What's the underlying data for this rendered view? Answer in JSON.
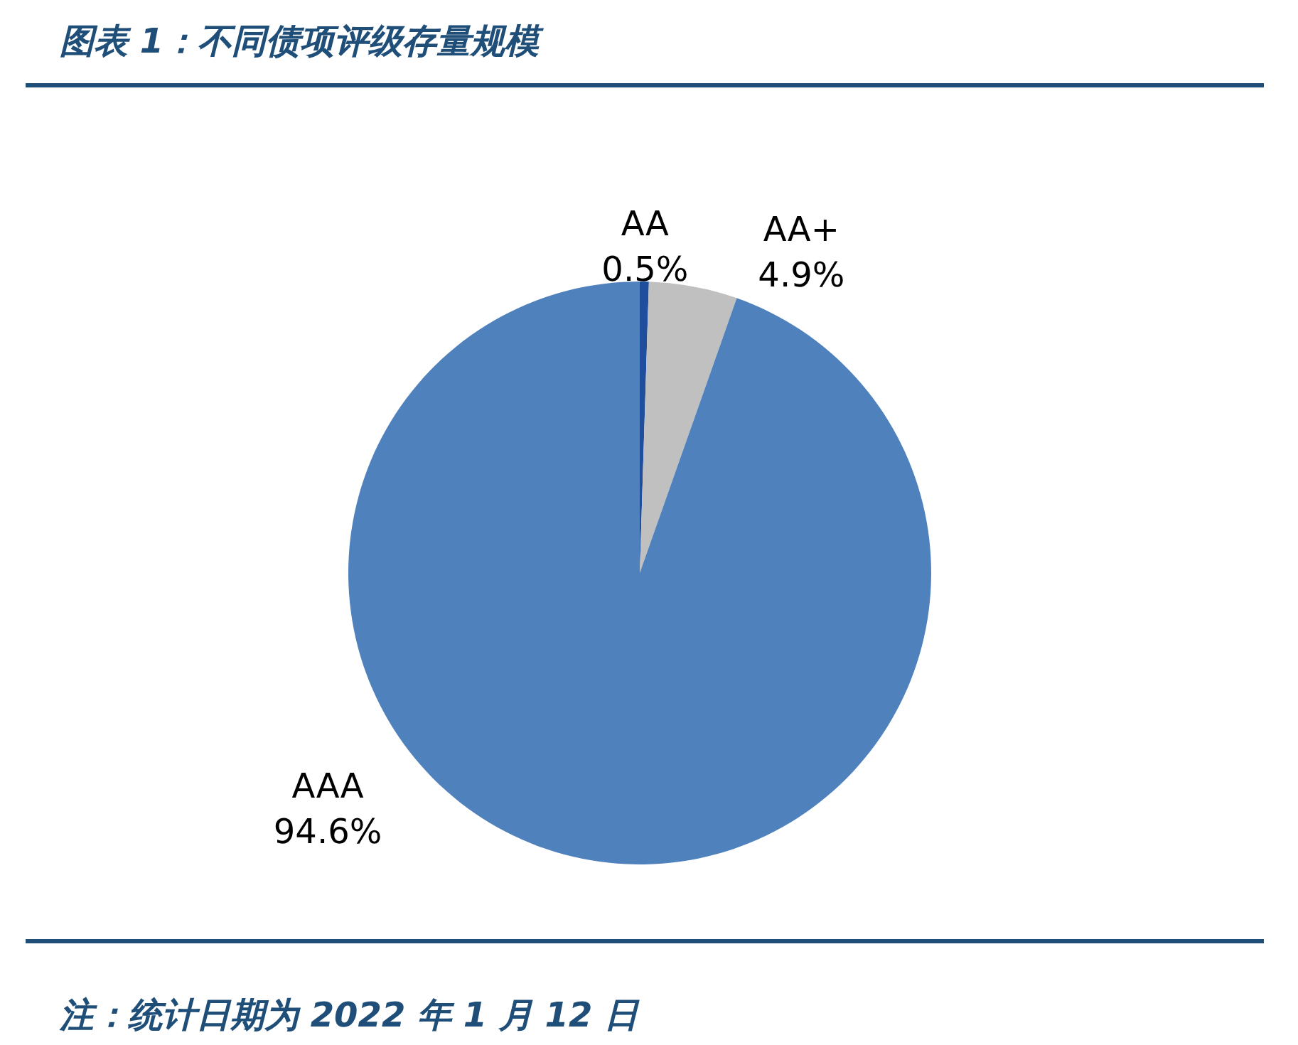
{
  "chart_data": {
    "type": "pie",
    "title": "图表 1：不同债项评级存量规模",
    "categories": [
      "AA",
      "AA+",
      "AAA"
    ],
    "values": [
      0.5,
      4.9,
      94.6
    ],
    "colors": [
      "#1f4e9c",
      "#c0c0c0",
      "#4f81bd"
    ],
    "value_labels": [
      "0.5%",
      "4.9%",
      "94.6%"
    ],
    "annotations": [
      "注：统计日期为 2022 年 1 月 12 日"
    ]
  }
}
